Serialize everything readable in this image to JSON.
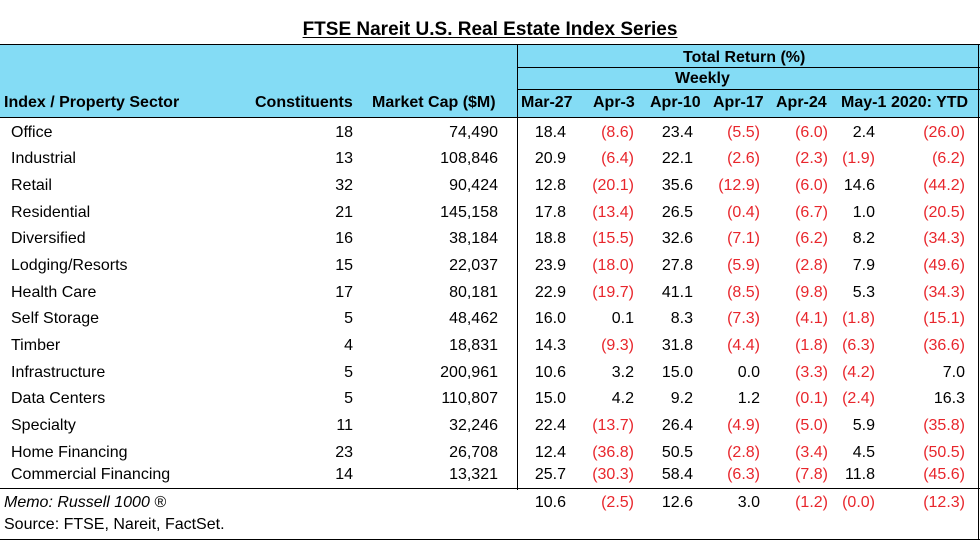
{
  "title": "FTSE Nareit U.S. Real Estate Index Series",
  "header": {
    "group_label": "Total Return (%)",
    "subgroup_label": "Weekly",
    "col_sector": "Index / Property Sector",
    "col_constituents": "Constituents",
    "col_market_cap": "Market Cap ($M)",
    "weeks": [
      "Mar-27",
      "Apr-3",
      "Apr-10",
      "Apr-17",
      "Apr-24",
      "May-1"
    ],
    "col_ytd": "2020: YTD"
  },
  "rows": [
    {
      "sector": "Office",
      "constituents": "18",
      "market_cap": "74,490",
      "weekly": [
        "18.4",
        "(8.6)",
        "23.4",
        "(5.5)",
        "(6.0)",
        "2.4"
      ],
      "ytd": "(26.0)"
    },
    {
      "sector": "Industrial",
      "constituents": "13",
      "market_cap": "108,846",
      "weekly": [
        "20.9",
        "(6.4)",
        "22.1",
        "(2.6)",
        "(2.3)",
        "(1.9)"
      ],
      "ytd": "(6.2)"
    },
    {
      "sector": "Retail",
      "constituents": "32",
      "market_cap": "90,424",
      "weekly": [
        "12.8",
        "(20.1)",
        "35.6",
        "(12.9)",
        "(6.0)",
        "14.6"
      ],
      "ytd": "(44.2)"
    },
    {
      "sector": "Residential",
      "constituents": "21",
      "market_cap": "145,158",
      "weekly": [
        "17.8",
        "(13.4)",
        "26.5",
        "(0.4)",
        "(6.7)",
        "1.0"
      ],
      "ytd": "(20.5)"
    },
    {
      "sector": "Diversified",
      "constituents": "16",
      "market_cap": "38,184",
      "weekly": [
        "18.8",
        "(15.5)",
        "32.6",
        "(7.1)",
        "(6.2)",
        "8.2"
      ],
      "ytd": "(34.3)"
    },
    {
      "sector": "Lodging/Resorts",
      "constituents": "15",
      "market_cap": "22,037",
      "weekly": [
        "23.9",
        "(18.0)",
        "27.8",
        "(5.9)",
        "(2.8)",
        "7.9"
      ],
      "ytd": "(49.6)"
    },
    {
      "sector": "Health Care",
      "constituents": "17",
      "market_cap": "80,181",
      "weekly": [
        "22.9",
        "(19.7)",
        "41.1",
        "(8.5)",
        "(9.8)",
        "5.3"
      ],
      "ytd": "(34.3)"
    },
    {
      "sector": "Self Storage",
      "constituents": "5",
      "market_cap": "48,462",
      "weekly": [
        "16.0",
        "0.1",
        "8.3",
        "(7.3)",
        "(4.1)",
        "(1.8)"
      ],
      "ytd": "(15.1)"
    },
    {
      "sector": "Timber",
      "constituents": "4",
      "market_cap": "18,831",
      "weekly": [
        "14.3",
        "(9.3)",
        "31.8",
        "(4.4)",
        "(1.8)",
        "(6.3)"
      ],
      "ytd": "(36.6)"
    },
    {
      "sector": "Infrastructure",
      "constituents": "5",
      "market_cap": "200,961",
      "weekly": [
        "10.6",
        "3.2",
        "15.0",
        "0.0",
        "(3.3)",
        "(4.2)"
      ],
      "ytd": "7.0"
    },
    {
      "sector": "Data Centers",
      "constituents": "5",
      "market_cap": "110,807",
      "weekly": [
        "15.0",
        "4.2",
        "9.2",
        "1.2",
        "(0.1)",
        "(2.4)"
      ],
      "ytd": "16.3"
    },
    {
      "sector": "Specialty",
      "constituents": "11",
      "market_cap": "32,246",
      "weekly": [
        "22.4",
        "(13.7)",
        "26.4",
        "(4.9)",
        "(5.0)",
        "5.9"
      ],
      "ytd": "(35.8)"
    },
    {
      "sector": "Home Financing",
      "constituents": "23",
      "market_cap": "26,708",
      "weekly": [
        "12.4",
        "(36.8)",
        "50.5",
        "(2.8)",
        "(3.4)",
        "4.5"
      ],
      "ytd": "(50.5)"
    },
    {
      "sector": "Commercial Financing",
      "constituents": "14",
      "market_cap": "13,321",
      "weekly": [
        "25.7",
        "(30.3)",
        "58.4",
        "(6.3)",
        "(7.8)",
        "11.8"
      ],
      "ytd": "(45.6)"
    }
  ],
  "memo": {
    "label": "Memo: Russell 1000 ®",
    "weekly": [
      "10.6",
      "(2.5)",
      "12.6",
      "3.0",
      "(1.2)",
      "(0.0)"
    ],
    "ytd": "(12.3)"
  },
  "source": "Source: FTSE, Nareit, FactSet.",
  "colors": {
    "header_bg": "#84dcf5",
    "negative": "#e8262c",
    "text": "#000000"
  }
}
